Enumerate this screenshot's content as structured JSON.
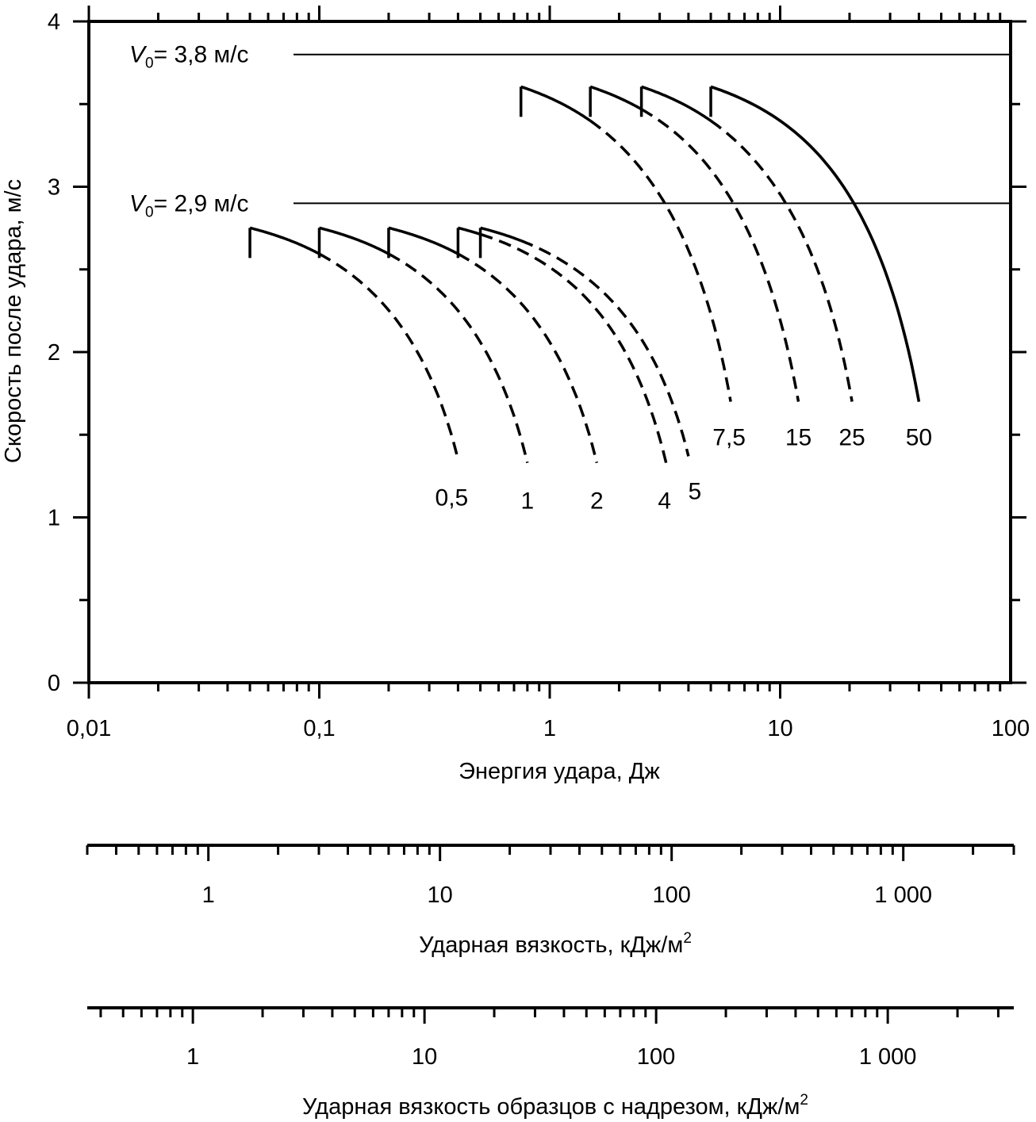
{
  "chart_data": {
    "type": "line",
    "x_scale": "log",
    "xlabel": "Энергия удара, Дж",
    "ylabel": "Скорость после удара, м/с",
    "xlim": [
      0.01,
      100
    ],
    "ylim": [
      0,
      4
    ],
    "x_tick_labels": [
      {
        "value": 0.01,
        "label": "0,01"
      },
      {
        "value": 0.1,
        "label": "0,1"
      },
      {
        "value": 1,
        "label": "1"
      },
      {
        "value": 10,
        "label": "10"
      },
      {
        "value": 100,
        "label": "100"
      }
    ],
    "y_tick_labels": [
      {
        "value": 0,
        "label": "0"
      },
      {
        "value": 1,
        "label": "1"
      },
      {
        "value": 2,
        "label": "2"
      },
      {
        "value": 3,
        "label": "3"
      },
      {
        "value": 4,
        "label": "4"
      }
    ],
    "grid": false,
    "reference_lines": [
      {
        "y": 3.8,
        "prefix": "V",
        "subscript": "0",
        "text": "= 3,8 м/с"
      },
      {
        "y": 2.9,
        "prefix": "V",
        "subscript": "0",
        "text": "= 2,9 м/с"
      }
    ],
    "series": [
      {
        "name": "0,5",
        "v0": 2.9,
        "x_start": 0.05,
        "x_switch": 0.1,
        "x_end": 0.4,
        "y_end": 1.35
      },
      {
        "name": "1",
        "v0": 2.9,
        "x_start": 0.1,
        "x_switch": 0.2,
        "x_end": 0.8,
        "y_end": 1.33
      },
      {
        "name": "2",
        "v0": 2.9,
        "x_start": 0.2,
        "x_switch": 0.4,
        "x_end": 1.6,
        "y_end": 1.33
      },
      {
        "name": "4",
        "v0": 2.9,
        "x_start": 0.4,
        "x_switch": 0.5,
        "x_end": 3.2,
        "y_end": 1.33
      },
      {
        "name": "5",
        "v0": 2.9,
        "x_start": 0.5,
        "x_switch": 0.75,
        "x_end": 4.0,
        "y_end": 1.37
      },
      {
        "name": "7,5",
        "v0": 3.8,
        "x_start": 0.75,
        "x_switch": 1.5,
        "x_end": 6.1,
        "y_end": 1.7
      },
      {
        "name": "15",
        "v0": 3.8,
        "x_start": 1.5,
        "x_switch": 2.5,
        "x_end": 12.0,
        "y_end": 1.7
      },
      {
        "name": "25",
        "v0": 3.8,
        "x_start": 2.5,
        "x_switch": 5.0,
        "x_end": 20.5,
        "y_end": 1.7
      },
      {
        "name": "50",
        "v0": 3.8,
        "x_start": 5.0,
        "x_switch": 40.0,
        "x_end": 40.0,
        "y_end": 1.7
      }
    ],
    "secondary_axes": [
      {
        "title": "Ударная вязкость, кДж/м",
        "title_superscript": "2",
        "scale": "log",
        "range": [
          0.3,
          3000
        ],
        "tick_labels": [
          {
            "value": 1,
            "label": "1"
          },
          {
            "value": 10,
            "label": "10"
          },
          {
            "value": 100,
            "label": "100"
          },
          {
            "value": 1000,
            "label": "1 000"
          }
        ]
      },
      {
        "title": "Ударная вязкость образцов с надрезом, кДж/м",
        "title_superscript": "2",
        "scale": "log",
        "range": [
          0.35,
          3500
        ],
        "tick_labels": [
          {
            "value": 1,
            "label": "1"
          },
          {
            "value": 10,
            "label": "10"
          },
          {
            "value": 100,
            "label": "100"
          },
          {
            "value": 1000,
            "label": "1 000"
          }
        ]
      }
    ]
  }
}
